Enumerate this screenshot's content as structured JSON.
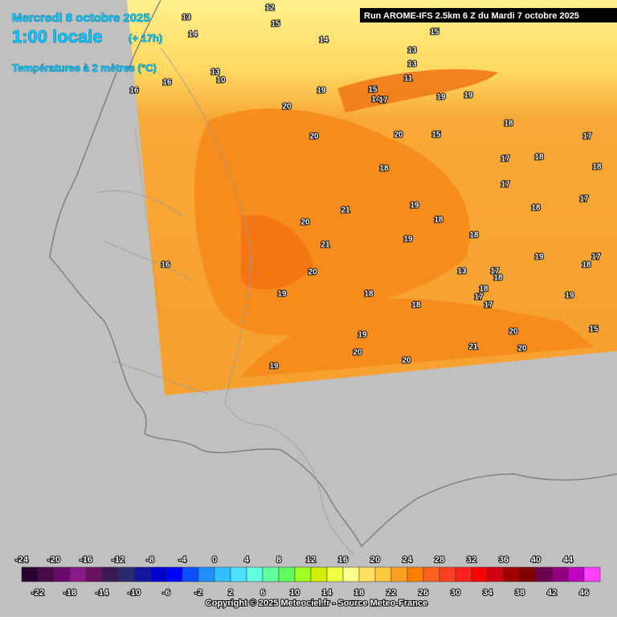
{
  "header": {
    "date": "Mercredi 8 octobre 2025",
    "time": "1:00 locale",
    "lead": "(+ 17h)",
    "variable": "Températures à 2 mètres (°C)",
    "run": "Run AROME-IFS 2.5km 6 Z du Mardi 7 octobre 2025"
  },
  "map": {
    "labels": [
      13,
      14,
      12,
      15,
      14,
      15,
      13,
      10,
      16,
      16,
      13,
      13,
      11,
      15,
      14,
      17,
      20,
      19,
      19,
      19,
      18,
      20,
      20,
      15,
      17,
      17,
      18,
      18,
      18,
      17,
      17,
      21,
      19,
      18,
      20,
      18,
      18,
      21,
      19,
      16,
      18,
      19,
      17,
      13,
      17,
      20,
      18,
      18,
      19,
      18,
      17,
      17,
      19,
      18,
      19,
      20,
      15,
      21,
      20,
      20,
      20,
      19
    ]
  },
  "legend": {
    "top_labels": [
      -24,
      -20,
      -16,
      -12,
      -8,
      -4,
      0,
      4,
      8,
      12,
      16,
      20,
      24,
      28,
      32,
      36,
      40,
      44
    ],
    "bottom_labels": [
      -22,
      -18,
      -14,
      -10,
      -6,
      -2,
      2,
      6,
      10,
      14,
      18,
      22,
      26,
      30,
      34,
      38,
      42,
      46
    ],
    "colors": [
      "#2b0033",
      "#4a0a4a",
      "#6a0a6a",
      "#8a1a8a",
      "#6a1060",
      "#3a1a50",
      "#2a2a70",
      "#1414a0",
      "#0000d0",
      "#0000ff",
      "#0a50ff",
      "#1e90ff",
      "#30c0ff",
      "#50e0ff",
      "#60ffe0",
      "#60ffa0",
      "#60ff60",
      "#a0ff20",
      "#d0f000",
      "#f0ff40",
      "#ffff90",
      "#ffe060",
      "#ffc840",
      "#ffa020",
      "#ff8000",
      "#ff6020",
      "#ff4020",
      "#ff2020",
      "#ff0000",
      "#d00010",
      "#a00000",
      "#800000",
      "#700050",
      "#900080",
      "#c000c0",
      "#ff40ff"
    ]
  },
  "footer": "Copyright © 2025 Meteociel.fr - Source Meteo-France"
}
